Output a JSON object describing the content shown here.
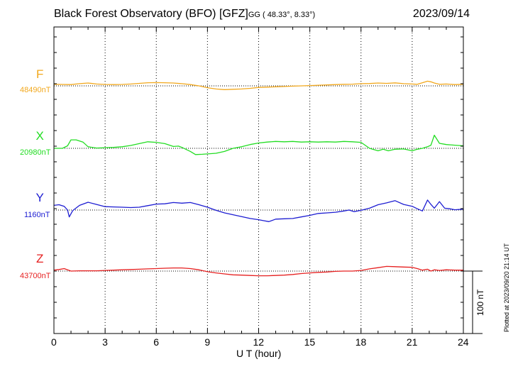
{
  "header": {
    "station": "Black Forest Observatory (BFO)  [GFZ]",
    "coords": "GG ( 48.33°,  8.33°)",
    "date": "2023/09/14"
  },
  "footer": {
    "plotted": "Plotted at 2023/09/20 21:14 UT",
    "scale": "100 nT"
  },
  "chart_data": {
    "type": "line",
    "xlabel": "U T (hour)",
    "xlim": [
      0,
      24
    ],
    "xticks": [
      0,
      3,
      6,
      9,
      12,
      15,
      18,
      21,
      24
    ],
    "scale_bar_nT": 100,
    "grid": true,
    "series": [
      {
        "name": "F",
        "baseline_label": "48490nT",
        "baseline_nT": 48490,
        "color": "#f2a81d",
        "x": [
          0,
          0.5,
          1,
          1.5,
          2,
          2.5,
          3,
          3.5,
          4,
          4.5,
          5,
          5.5,
          6,
          6.5,
          7,
          7.5,
          8,
          8.5,
          9,
          9.5,
          10,
          10.5,
          11,
          11.5,
          12,
          12.5,
          13,
          13.5,
          14,
          14.5,
          15,
          15.5,
          16,
          16.5,
          17,
          17.5,
          18,
          18.5,
          19,
          19.5,
          20,
          20.5,
          21,
          21.3,
          21.6,
          21.9,
          22.1,
          22.3,
          22.6,
          23,
          23.5,
          24
        ],
        "y": [
          5,
          4.5,
          4,
          7,
          9,
          6,
          4.5,
          4,
          4.5,
          6,
          8,
          10,
          10.5,
          10,
          9,
          7,
          4,
          0,
          -6,
          -10,
          -12,
          -11,
          -10,
          -8,
          -5,
          -4,
          -3,
          -2,
          -1,
          0,
          1,
          2,
          3,
          4,
          5,
          5.5,
          7,
          7.5,
          9,
          8,
          9.5,
          7,
          6,
          5,
          10,
          15,
          13,
          9,
          5,
          6,
          4,
          5
        ]
      },
      {
        "name": "X",
        "baseline_label": "20980nT",
        "baseline_nT": 20980,
        "color": "#22dd22",
        "x": [
          0,
          0.5,
          0.8,
          1,
          1.3,
          1.7,
          2,
          2.5,
          3,
          3.5,
          4,
          4.5,
          5,
          5.5,
          6,
          6.5,
          7,
          7.3,
          7.5,
          8,
          8.3,
          8.7,
          9,
          9.5,
          10,
          10.5,
          11,
          11.5,
          12,
          12.5,
          13,
          13.5,
          14,
          14.5,
          15,
          15.5,
          16,
          16.5,
          17,
          17.5,
          18,
          18.5,
          19,
          19.3,
          19.6,
          20,
          20.5,
          21,
          21.3,
          21.6,
          21.9,
          22.1,
          22.3,
          22.6,
          23,
          23.5,
          24
        ],
        "y": [
          0,
          0,
          8,
          27,
          27,
          20,
          5,
          1,
          2,
          3,
          5,
          9,
          15,
          21,
          19,
          15,
          6,
          7,
          3,
          -10,
          -20,
          -19,
          -18,
          -16,
          -10,
          0,
          5,
          12,
          17,
          20,
          22,
          21,
          22,
          20,
          21,
          20,
          21,
          20,
          22,
          21,
          19,
          0,
          -8,
          -3,
          -8,
          -3,
          -2,
          -8,
          -3,
          0,
          5,
          10,
          42,
          16,
          12,
          10,
          8
        ]
      },
      {
        "name": "Y",
        "baseline_label": "1160nT",
        "baseline_nT": 1160,
        "color": "#1d1dd2",
        "x": [
          0,
          0.3,
          0.6,
          0.8,
          0.9,
          1.1,
          1.5,
          2,
          2.5,
          3,
          3.5,
          4,
          4.5,
          5,
          5.5,
          6,
          6.5,
          7,
          7.5,
          8,
          8.5,
          9,
          9.5,
          10,
          10.5,
          11,
          11.5,
          12,
          12.3,
          12.6,
          13,
          13.5,
          14,
          14.5,
          15,
          15.5,
          16,
          16.5,
          17,
          17.3,
          17.6,
          18,
          18.5,
          19,
          19.5,
          20,
          20.5,
          21,
          21.3,
          21.6,
          21.9,
          22.1,
          22.3,
          22.6,
          22.9,
          23.2,
          23.5,
          24
        ],
        "y": [
          15,
          17,
          12,
          0,
          -22,
          -2,
          15,
          25,
          18,
          11,
          10,
          9,
          8,
          9,
          14,
          19,
          20,
          24,
          22,
          24,
          17,
          9,
          -1,
          -9,
          -15,
          -21,
          -27,
          -31,
          -34,
          -37,
          -29,
          -28,
          -27,
          -22,
          -17,
          -11,
          -9,
          -7,
          -3,
          0,
          -5,
          -1,
          6,
          17,
          23,
          30,
          18,
          12,
          4,
          -3,
          32,
          18,
          6,
          27,
          6,
          4,
          1,
          3
        ]
      },
      {
        "name": "Z",
        "baseline_label": "43700nT",
        "baseline_nT": 43700,
        "color": "#e62020",
        "x": [
          0,
          0.3,
          0.6,
          1,
          1.5,
          2,
          2.5,
          3,
          3.5,
          4,
          4.5,
          5,
          5.5,
          6,
          6.5,
          7,
          7.5,
          8,
          8.5,
          9,
          9.5,
          10,
          10.5,
          11,
          11.5,
          12,
          12.5,
          13,
          13.5,
          14,
          14.5,
          15,
          15.5,
          16,
          16.5,
          17,
          17.5,
          18,
          18.5,
          19,
          19.5,
          20,
          20.5,
          21,
          21.3,
          21.6,
          21.9,
          22.1,
          22.3,
          22.6,
          23,
          23.5,
          24
        ],
        "y": [
          3,
          5,
          8,
          0,
          1,
          1,
          1,
          2,
          3,
          4,
          5,
          6,
          7,
          8,
          9,
          10,
          10,
          8,
          4,
          -2,
          -6,
          -9,
          -12,
          -13,
          -14,
          -15,
          -15,
          -14,
          -13,
          -11,
          -8,
          -6,
          -4,
          -3,
          -1,
          0,
          0,
          2,
          7,
          11,
          15,
          14,
          13,
          12,
          8,
          3,
          6,
          0,
          4,
          2,
          4,
          3,
          3
        ]
      }
    ]
  }
}
